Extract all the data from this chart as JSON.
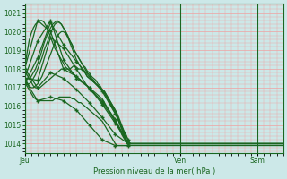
{
  "xlabel": "Pression niveau de la mer( hPa )",
  "background_color": "#cce8e8",
  "grid_color": "#f0a0a0",
  "line_color": "#1a6620",
  "ylim": [
    1013.5,
    1021.5
  ],
  "yticks": [
    1014,
    1015,
    1016,
    1017,
    1018,
    1019,
    1020,
    1021
  ],
  "xlim": [
    0,
    120
  ],
  "day_labels": [
    "Jeu",
    "Ven",
    "Sam"
  ],
  "day_positions": [
    0,
    72,
    108
  ],
  "series": [
    [
      1018.0,
      1018.8,
      1019.5,
      1019.9,
      1020.2,
      1020.4,
      1020.5,
      1020.6,
      1020.6,
      1020.5,
      1020.3,
      1020.0,
      1019.7,
      1019.4,
      1019.1,
      1018.9,
      1018.7,
      1018.5,
      1018.3,
      1018.1,
      1018.0,
      1018.0,
      1018.1,
      1018.2,
      1018.1,
      1018.0,
      1018.0,
      1017.9,
      1017.8,
      1017.6,
      1017.5,
      1017.4,
      1017.3,
      1017.2,
      1017.1,
      1017.0,
      1016.9,
      1016.8,
      1016.6,
      1016.4,
      1016.2,
      1016.0,
      1015.8,
      1015.5,
      1015.2,
      1014.9,
      1014.6,
      1014.3,
      1014.0,
      1014.0,
      1014.0,
      1014.0,
      1014.0,
      1014.0,
      1014.0,
      1014.0,
      1014.0,
      1014.0,
      1014.0,
      1014.0,
      1014.0,
      1014.0,
      1014.0,
      1014.0,
      1014.0,
      1014.0,
      1014.0,
      1014.0,
      1014.0,
      1014.0,
      1014.0,
      1014.0,
      1014.0,
      1014.0,
      1014.0,
      1014.0,
      1014.0,
      1014.0,
      1014.0,
      1014.0,
      1014.0,
      1014.0,
      1014.0,
      1014.0,
      1014.0,
      1014.0,
      1014.0,
      1014.0,
      1014.0,
      1014.0,
      1014.0,
      1014.0,
      1014.0,
      1014.0,
      1014.0,
      1014.0,
      1014.0,
      1014.0,
      1014.0,
      1014.0,
      1014.0,
      1014.0,
      1014.0,
      1014.0,
      1014.0,
      1014.0,
      1014.0,
      1014.0,
      1014.0,
      1014.0,
      1014.0,
      1014.0,
      1014.0,
      1014.0,
      1014.0,
      1014.0,
      1014.0,
      1014.0,
      1014.0,
      1014.0,
      1014.0
    ],
    [
      1017.5,
      1017.5,
      1017.5,
      1017.6,
      1017.8,
      1018.0,
      1018.3,
      1018.6,
      1019.0,
      1019.4,
      1019.7,
      1020.0,
      1020.2,
      1020.4,
      1020.5,
      1020.6,
      1020.5,
      1020.4,
      1020.2,
      1020.0,
      1019.7,
      1019.4,
      1019.1,
      1018.8,
      1018.5,
      1018.3,
      1018.1,
      1017.9,
      1017.8,
      1017.6,
      1017.5,
      1017.4,
      1017.3,
      1017.2,
      1017.1,
      1017.0,
      1016.9,
      1016.7,
      1016.5,
      1016.3,
      1016.1,
      1015.9,
      1015.7,
      1015.4,
      1015.1,
      1014.8,
      1014.5,
      1014.2,
      1014.0,
      1014.0,
      1014.0,
      1014.0,
      1014.0,
      1014.0,
      1014.0,
      1014.0,
      1014.0,
      1014.0,
      1014.0,
      1014.0,
      1014.0,
      1014.0,
      1014.0,
      1014.0,
      1014.0,
      1014.0,
      1014.0,
      1014.0,
      1014.0,
      1014.0,
      1014.0,
      1014.0,
      1014.0,
      1014.0,
      1014.0,
      1014.0,
      1014.0,
      1014.0,
      1014.0,
      1014.0,
      1014.0,
      1014.0,
      1014.0,
      1014.0,
      1014.0,
      1014.0,
      1014.0,
      1014.0,
      1014.0,
      1014.0,
      1014.0,
      1014.0,
      1014.0,
      1014.0,
      1014.0,
      1014.0,
      1014.0,
      1014.0,
      1014.0,
      1014.0,
      1014.0,
      1014.0,
      1014.0,
      1014.0,
      1014.0,
      1014.0,
      1014.0,
      1014.0,
      1014.0,
      1014.0,
      1014.0,
      1014.0,
      1014.0,
      1014.0,
      1014.0,
      1014.0,
      1014.0,
      1014.0,
      1014.0,
      1014.0,
      1014.0
    ],
    [
      1017.2,
      1017.2,
      1017.2,
      1017.3,
      1017.5,
      1017.7,
      1018.0,
      1018.3,
      1018.6,
      1019.0,
      1019.3,
      1019.6,
      1019.9,
      1020.2,
      1020.4,
      1020.5,
      1020.5,
      1020.4,
      1020.2,
      1020.0,
      1019.8,
      1019.5,
      1019.3,
      1019.0,
      1018.8,
      1018.6,
      1018.4,
      1018.2,
      1018.1,
      1017.9,
      1017.8,
      1017.6,
      1017.5,
      1017.4,
      1017.2,
      1017.1,
      1016.9,
      1016.8,
      1016.6,
      1016.4,
      1016.2,
      1016.0,
      1015.8,
      1015.6,
      1015.3,
      1015.0,
      1014.7,
      1014.5,
      1014.2,
      1014.0,
      1014.0,
      1014.0,
      1014.0,
      1014.0,
      1014.0,
      1014.0,
      1014.0,
      1014.0,
      1014.0,
      1014.0,
      1014.0,
      1014.0,
      1014.0,
      1014.0,
      1014.0,
      1014.0,
      1014.0,
      1014.0,
      1014.0,
      1014.0,
      1014.0,
      1014.0,
      1014.0,
      1014.0,
      1014.0,
      1014.0,
      1014.0,
      1014.0,
      1014.0,
      1014.0,
      1014.0,
      1014.0,
      1014.0,
      1014.0,
      1014.0,
      1014.0,
      1014.0,
      1014.0,
      1014.0,
      1014.0,
      1014.0,
      1014.0,
      1014.0,
      1014.0,
      1014.0,
      1014.0,
      1014.0,
      1014.0,
      1014.0,
      1014.0,
      1014.0,
      1014.0,
      1014.0,
      1014.0,
      1014.0,
      1014.0,
      1014.0,
      1014.0,
      1014.0,
      1014.0,
      1014.0,
      1014.0,
      1014.0,
      1014.0,
      1014.0,
      1014.0,
      1014.0,
      1014.0,
      1014.0,
      1014.0,
      1014.0
    ],
    [
      1017.5,
      1017.3,
      1017.1,
      1017.0,
      1017.0,
      1017.1,
      1017.2,
      1017.4,
      1017.6,
      1017.9,
      1018.2,
      1018.5,
      1018.8,
      1019.1,
      1019.4,
      1019.7,
      1019.9,
      1020.0,
      1020.0,
      1019.9,
      1019.7,
      1019.5,
      1019.3,
      1019.0,
      1018.8,
      1018.6,
      1018.4,
      1018.2,
      1018.0,
      1017.8,
      1017.7,
      1017.5,
      1017.4,
      1017.2,
      1017.1,
      1017.0,
      1016.8,
      1016.7,
      1016.5,
      1016.3,
      1016.1,
      1015.9,
      1015.7,
      1015.4,
      1015.1,
      1014.8,
      1014.5,
      1014.2,
      1014.0,
      1014.0,
      1014.0,
      1014.0,
      1014.0,
      1014.0,
      1014.0,
      1014.0,
      1014.0,
      1014.0,
      1014.0,
      1014.0,
      1014.0,
      1014.0,
      1014.0,
      1014.0,
      1014.0,
      1014.0,
      1014.0,
      1014.0,
      1014.0,
      1014.0,
      1014.0,
      1014.0,
      1014.0,
      1014.0,
      1014.0,
      1014.0,
      1014.0,
      1014.0,
      1014.0,
      1014.0,
      1014.0,
      1014.0,
      1014.0,
      1014.0,
      1014.0,
      1014.0,
      1014.0,
      1014.0,
      1014.0,
      1014.0,
      1014.0,
      1014.0,
      1014.0,
      1014.0,
      1014.0,
      1014.0,
      1014.0,
      1014.0,
      1014.0,
      1014.0,
      1014.0,
      1014.0,
      1014.0,
      1014.0,
      1014.0,
      1014.0,
      1014.0,
      1014.0,
      1014.0,
      1014.0,
      1014.0,
      1014.0,
      1014.0,
      1014.0,
      1014.0,
      1014.0,
      1014.0,
      1014.0,
      1014.0,
      1014.0,
      1014.0
    ],
    [
      1018.0,
      1017.7,
      1017.5,
      1017.3,
      1017.1,
      1017.0,
      1017.0,
      1017.0,
      1017.1,
      1017.2,
      1017.3,
      1017.4,
      1017.5,
      1017.6,
      1017.7,
      1017.8,
      1017.9,
      1018.0,
      1018.0,
      1018.0,
      1018.0,
      1017.9,
      1017.8,
      1017.7,
      1017.6,
      1017.5,
      1017.4,
      1017.3,
      1017.2,
      1017.1,
      1017.0,
      1016.9,
      1016.8,
      1016.7,
      1016.6,
      1016.5,
      1016.4,
      1016.2,
      1016.0,
      1015.8,
      1015.6,
      1015.4,
      1015.2,
      1015.0,
      1014.8,
      1014.5,
      1014.3,
      1014.1,
      1014.0,
      1014.0,
      1014.0,
      1014.0,
      1014.0,
      1014.0,
      1014.0,
      1014.0,
      1014.0,
      1014.0,
      1014.0,
      1014.0,
      1014.0,
      1014.0,
      1014.0,
      1014.0,
      1014.0,
      1014.0,
      1014.0,
      1014.0,
      1014.0,
      1014.0,
      1014.0,
      1014.0,
      1014.0,
      1014.0,
      1014.0,
      1014.0,
      1014.0,
      1014.0,
      1014.0,
      1014.0,
      1014.0,
      1014.0,
      1014.0,
      1014.0,
      1014.0,
      1014.0,
      1014.0,
      1014.0,
      1014.0,
      1014.0,
      1014.0,
      1014.0,
      1014.0,
      1014.0,
      1014.0,
      1014.0,
      1014.0,
      1014.0,
      1014.0,
      1014.0,
      1014.0,
      1014.0,
      1014.0,
      1014.0,
      1014.0,
      1014.0,
      1014.0,
      1014.0,
      1014.0,
      1014.0,
      1014.0,
      1014.0,
      1014.0,
      1014.0,
      1014.0,
      1014.0,
      1014.0,
      1014.0,
      1014.0,
      1014.0,
      1014.0
    ],
    [
      1017.4,
      1017.1,
      1016.9,
      1016.7,
      1016.5,
      1016.4,
      1016.3,
      1016.3,
      1016.3,
      1016.3,
      1016.3,
      1016.3,
      1016.3,
      1016.3,
      1016.4,
      1016.4,
      1016.5,
      1016.5,
      1016.5,
      1016.5,
      1016.5,
      1016.5,
      1016.4,
      1016.4,
      1016.3,
      1016.2,
      1016.2,
      1016.1,
      1016.0,
      1015.9,
      1015.8,
      1015.7,
      1015.6,
      1015.5,
      1015.4,
      1015.3,
      1015.2,
      1015.0,
      1014.8,
      1014.6,
      1014.4,
      1014.2,
      1014.0,
      1013.9,
      1013.9,
      1013.9,
      1013.9,
      1013.9,
      1013.9,
      1013.9,
      1013.9,
      1013.9,
      1013.9,
      1013.9,
      1013.9,
      1013.9,
      1013.9,
      1013.9,
      1013.9,
      1013.9,
      1013.9,
      1013.9,
      1013.9,
      1013.9,
      1013.9,
      1013.9,
      1013.9,
      1013.9,
      1013.9,
      1013.9,
      1013.9,
      1013.9,
      1013.9,
      1013.9,
      1013.9,
      1013.9,
      1013.9,
      1013.9,
      1013.9,
      1013.9,
      1013.9,
      1013.9,
      1013.9,
      1013.9,
      1013.9,
      1013.9,
      1013.9,
      1013.9,
      1013.9,
      1013.9,
      1013.9,
      1013.9,
      1013.9,
      1013.9,
      1013.9,
      1013.9,
      1013.9,
      1013.9,
      1013.9,
      1013.9,
      1013.9,
      1013.9,
      1013.9,
      1013.9,
      1013.9,
      1013.9,
      1013.9,
      1013.9,
      1013.9,
      1013.9,
      1013.9,
      1013.9,
      1013.9,
      1013.9,
      1013.9,
      1013.9,
      1013.9,
      1013.9,
      1013.9,
      1013.9,
      1013.9
    ]
  ],
  "markers": [
    {
      "x": [
        0,
        6,
        12,
        18,
        24,
        30,
        36,
        42,
        48
      ],
      "y": [
        1018.0,
        1020.6,
        1020.0,
        1018.0,
        1017.6,
        1017.0,
        1016.2,
        1015.2,
        1014.0
      ]
    },
    {
      "x": [
        0,
        6,
        12,
        18,
        24,
        30,
        36,
        42,
        48
      ],
      "y": [
        1017.5,
        1019.5,
        1020.6,
        1018.5,
        1017.5,
        1017.0,
        1016.1,
        1015.1,
        1014.0
      ]
    },
    {
      "x": [
        0,
        6,
        12,
        18,
        24,
        30,
        36,
        42,
        48
      ],
      "y": [
        1017.2,
        1018.6,
        1020.5,
        1019.3,
        1018.4,
        1017.6,
        1016.8,
        1015.6,
        1014.2
      ]
    },
    {
      "x": [
        0,
        6,
        12,
        18,
        24,
        30,
        36,
        42,
        48
      ],
      "y": [
        1017.5,
        1017.4,
        1019.7,
        1019.1,
        1018.0,
        1016.9,
        1016.3,
        1015.3,
        1014.0
      ]
    },
    {
      "x": [
        0,
        6,
        12,
        18,
        24,
        30,
        36,
        42,
        48
      ],
      "y": [
        1018.0,
        1017.0,
        1017.8,
        1017.5,
        1016.9,
        1016.2,
        1015.4,
        1014.5,
        1014.0
      ]
    },
    {
      "x": [
        0,
        6,
        12,
        18,
        24,
        30,
        36,
        42,
        48
      ],
      "y": [
        1017.4,
        1016.3,
        1016.5,
        1016.3,
        1015.8,
        1015.0,
        1014.2,
        1013.9,
        1013.9
      ]
    }
  ]
}
